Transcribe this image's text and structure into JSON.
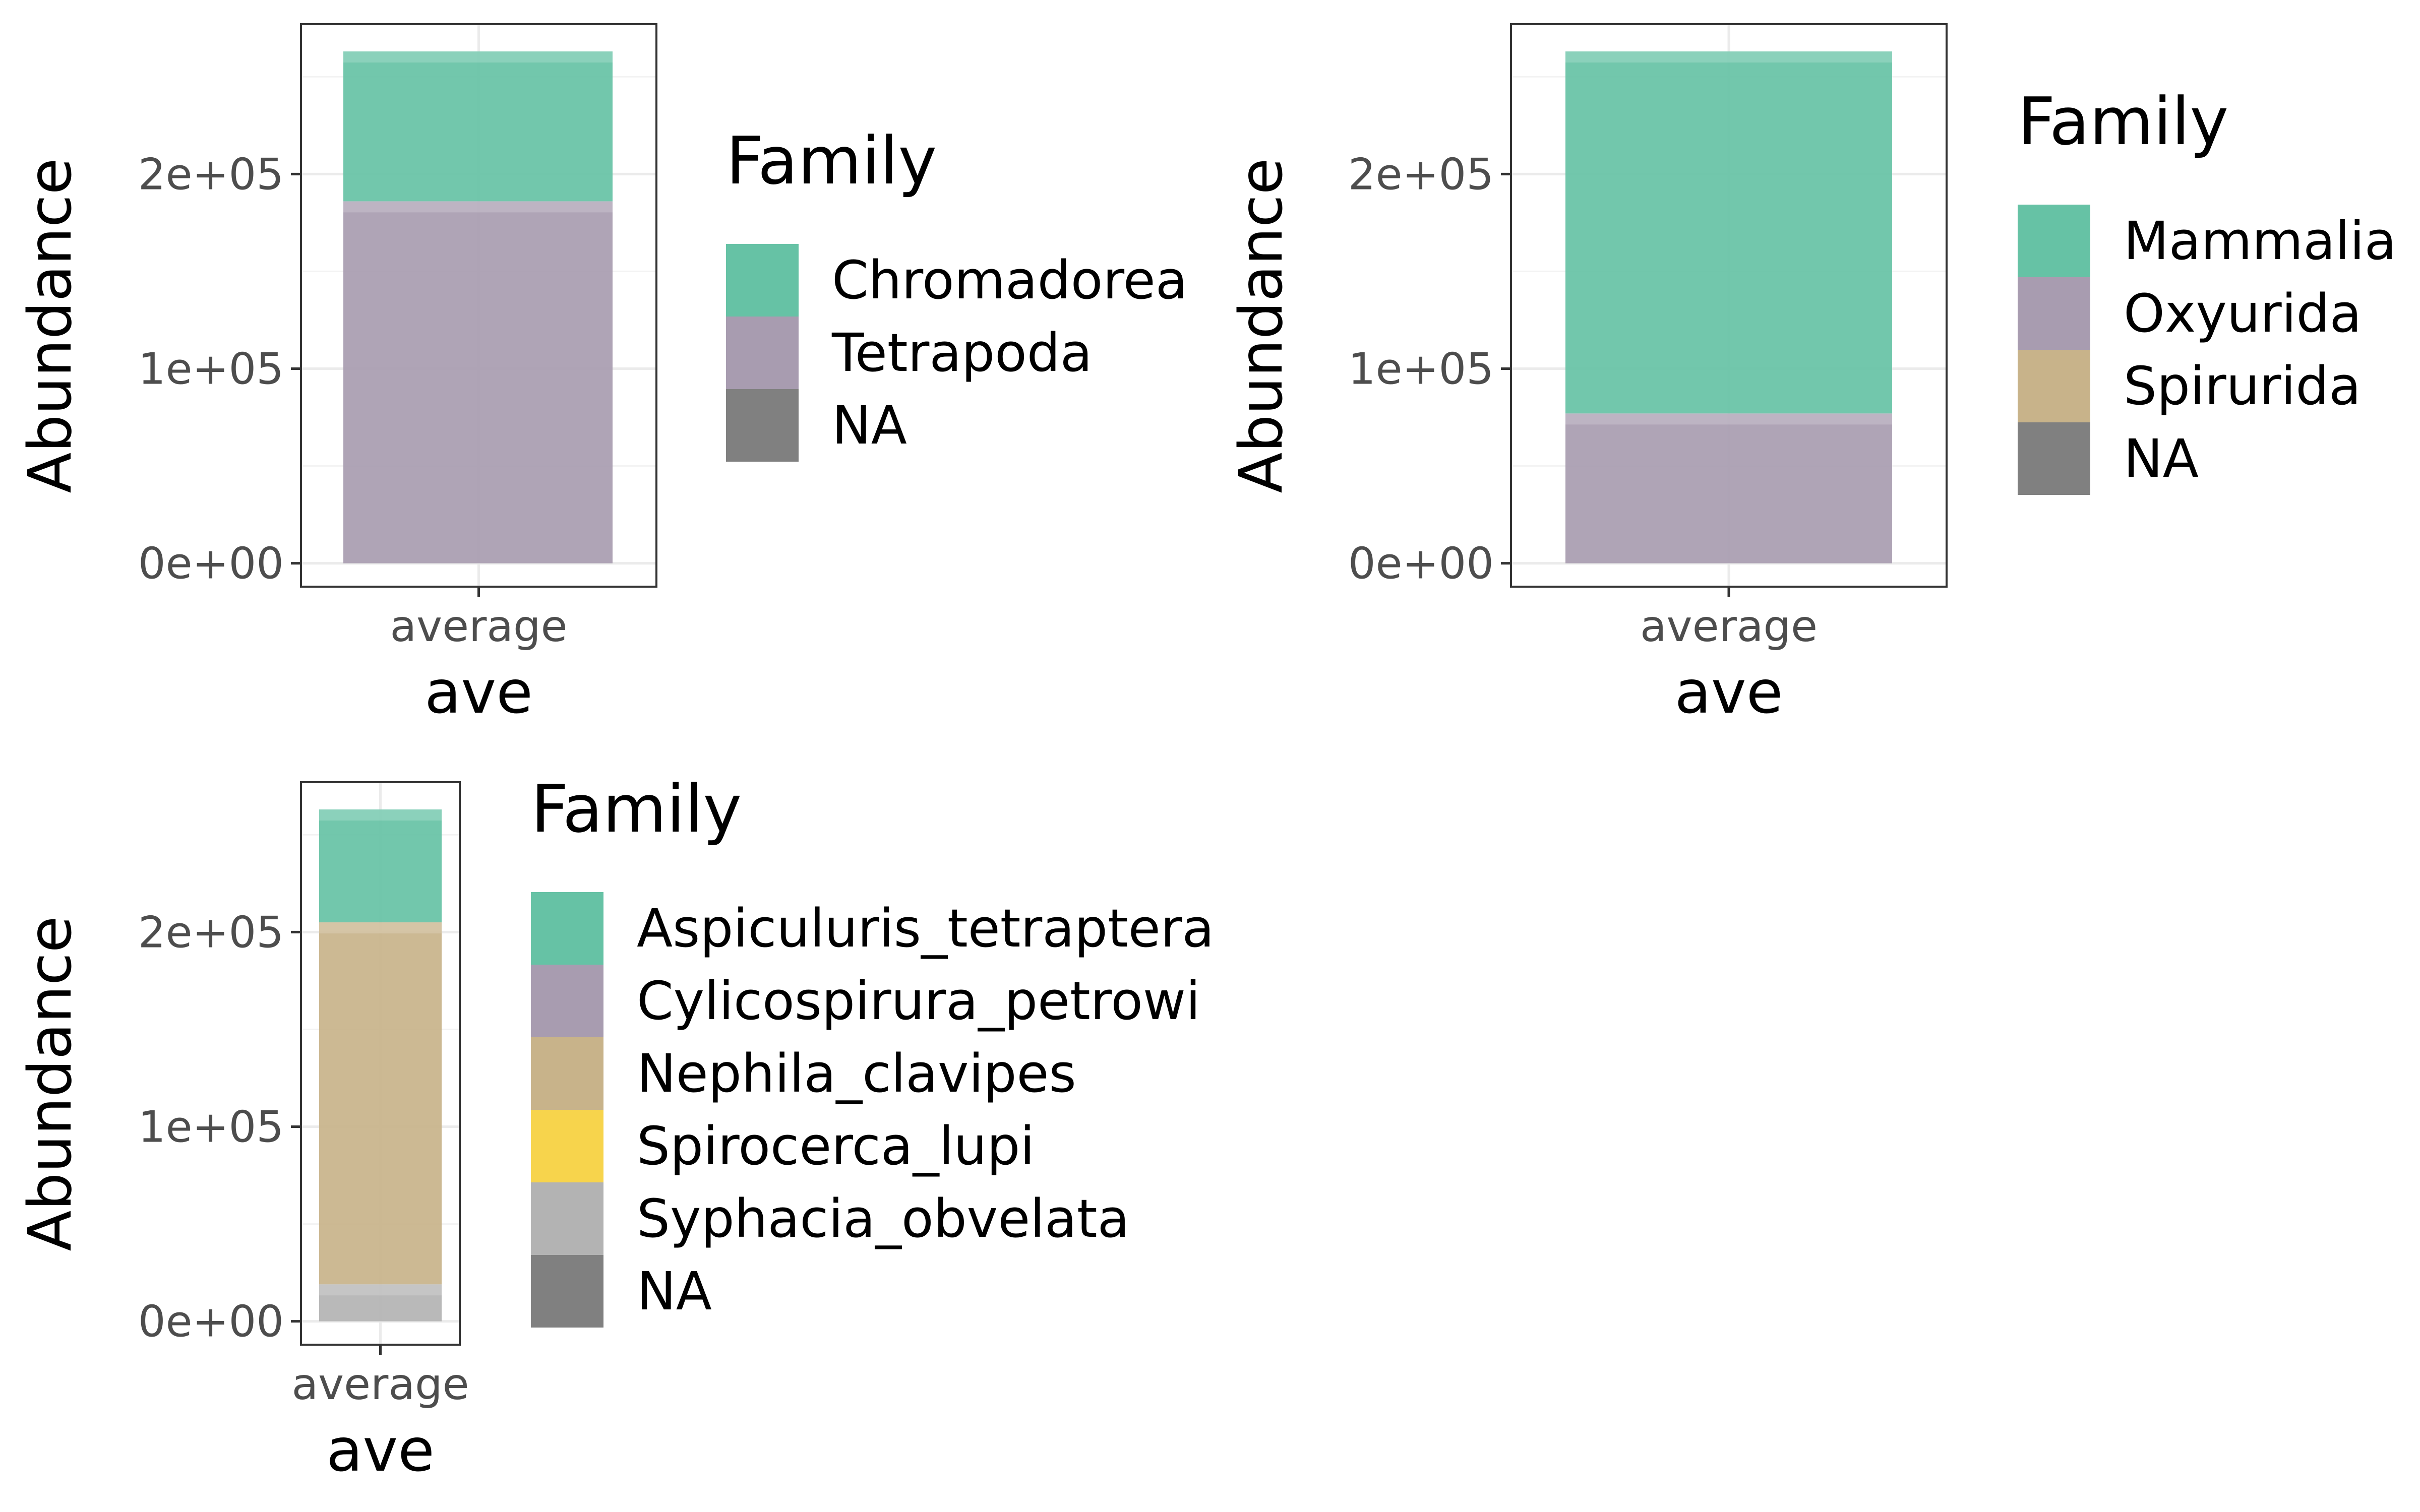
{
  "chart_data": [
    {
      "type": "bar",
      "stacked": true,
      "xlabel": "ave",
      "ylabel": "Abundance",
      "categories": [
        "average"
      ],
      "ylim": [
        -12000,
        277000
      ],
      "y_ticks": [
        {
          "value": 0,
          "label": "0e+00"
        },
        {
          "value": 100000,
          "label": "1e+05"
        },
        {
          "value": 200000,
          "label": "2e+05"
        }
      ],
      "grid": true,
      "legend": {
        "title": "Family",
        "placement": "right",
        "entries": [
          {
            "label": "Chromadorea",
            "color": "#66c2a5"
          },
          {
            "label": "Tetrapoda",
            "color": "#a89cb0"
          },
          {
            "label": "NA",
            "color": "#808080"
          }
        ]
      },
      "series": [
        {
          "name": "Tetrapoda",
          "values": [
            186000
          ],
          "color": "#a89cb0"
        },
        {
          "name": "Chromadorea",
          "values": [
            77000
          ],
          "color": "#66c2a5"
        }
      ]
    },
    {
      "type": "bar",
      "stacked": true,
      "xlabel": "ave",
      "ylabel": "Abundance",
      "categories": [
        "average"
      ],
      "ylim": [
        -12000,
        277000
      ],
      "y_ticks": [
        {
          "value": 0,
          "label": "0e+00"
        },
        {
          "value": 100000,
          "label": "1e+05"
        },
        {
          "value": 200000,
          "label": "2e+05"
        }
      ],
      "grid": true,
      "legend": {
        "title": "Family",
        "placement": "right",
        "entries": [
          {
            "label": "Mammalia",
            "color": "#66c2a5"
          },
          {
            "label": "Oxyurida",
            "color": "#a89cb0"
          },
          {
            "label": "Spirurida",
            "color": "#c8b38a"
          },
          {
            "label": "NA",
            "color": "#808080"
          }
        ]
      },
      "series": [
        {
          "name": "Oxyurida",
          "values": [
            77000
          ],
          "color": "#a89cb0"
        },
        {
          "name": "Mammalia",
          "values": [
            186000
          ],
          "color": "#66c2a5"
        }
      ]
    },
    {
      "type": "bar",
      "stacked": true,
      "xlabel": "ave",
      "ylabel": "Abundance",
      "categories": [
        "average"
      ],
      "ylim": [
        -12000,
        277000
      ],
      "y_ticks": [
        {
          "value": 0,
          "label": "0e+00"
        },
        {
          "value": 100000,
          "label": "1e+05"
        },
        {
          "value": 200000,
          "label": "2e+05"
        }
      ],
      "grid": true,
      "legend": {
        "title": "Family",
        "placement": "right",
        "entries": [
          {
            "label": "Aspiculuris_tetraptera",
            "color": "#66c2a5"
          },
          {
            "label": "Cylicospirura_petrowi",
            "color": "#a89cb0"
          },
          {
            "label": "Nephila_clavipes",
            "color": "#c8b38a"
          },
          {
            "label": "Spirocerca_lupi",
            "color": "#f7d44c"
          },
          {
            "label": "Syphacia_obvelata",
            "color": "#b3b3b3"
          },
          {
            "label": "NA",
            "color": "#808080"
          }
        ]
      },
      "series": [
        {
          "name": "Syphacia_obvelata",
          "values": [
            19000
          ],
          "color": "#b3b3b3"
        },
        {
          "name": "Nephila_clavipes",
          "values": [
            186000
          ],
          "color": "#c8b38a"
        },
        {
          "name": "Aspiculuris_tetraptera",
          "values": [
            58000
          ],
          "color": "#66c2a5"
        }
      ]
    }
  ]
}
